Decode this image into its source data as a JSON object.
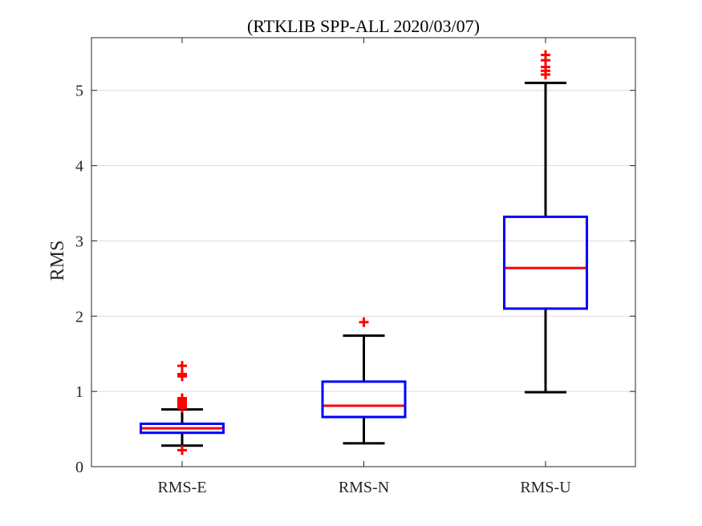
{
  "chart_data": {
    "type": "boxplot",
    "title": "(RTKLIB SPP-ALL 2020/03/07)",
    "xlabel": "",
    "ylabel": "RMS",
    "ylim": [
      0,
      5.7
    ],
    "yticks": [
      0,
      1,
      2,
      3,
      4,
      5
    ],
    "grid_y": true,
    "categories": [
      "RMS-E",
      "RMS-N",
      "RMS-U"
    ],
    "boxes": [
      {
        "name": "RMS-E",
        "whisker_low": 0.28,
        "q1": 0.45,
        "median": 0.51,
        "q3": 0.57,
        "whisker_high": 0.76,
        "outliers": [
          0.22,
          0.78,
          0.8,
          0.83,
          0.86,
          0.88,
          0.91,
          1.2,
          1.23,
          1.34
        ]
      },
      {
        "name": "RMS-N",
        "whisker_low": 0.31,
        "q1": 0.66,
        "median": 0.81,
        "q3": 1.13,
        "whisker_high": 1.74,
        "outliers": [
          1.92
        ]
      },
      {
        "name": "RMS-U",
        "whisker_low": 0.99,
        "q1": 2.1,
        "median": 2.64,
        "q3": 3.32,
        "whisker_high": 5.1,
        "outliers": [
          5.21,
          5.26,
          5.31,
          5.4,
          5.47
        ]
      }
    ],
    "colors": {
      "box": "#0000ff",
      "median": "#ff0000",
      "whisker": "#000000",
      "outlier": "#ff0000",
      "grid": "#dcdcdc",
      "axis": "#262626"
    }
  }
}
